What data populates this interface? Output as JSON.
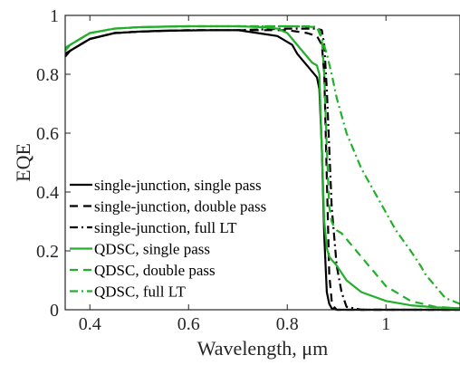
{
  "chart_data": {
    "type": "line",
    "xlabel": "Wavelength, μm",
    "ylabel": "EQE",
    "xlim": [
      0.35,
      1.15
    ],
    "ylim": [
      0,
      1
    ],
    "xticks": [
      0.4,
      0.6,
      0.8,
      1
    ],
    "xtick_labels": [
      "0.4",
      "0.6",
      "0.8",
      "1"
    ],
    "yticks": [
      0,
      0.2,
      0.4,
      0.6,
      0.8,
      1
    ],
    "ytick_labels": [
      "0",
      "0.2",
      "0.4",
      "0.6",
      "0.8",
      "1"
    ],
    "grid": false,
    "legend_position": "bottom-left",
    "series": [
      {
        "name": "single-junction, single pass",
        "color": "#000000",
        "dash": "solid",
        "x": [
          0.35,
          0.36,
          0.38,
          0.4,
          0.45,
          0.5,
          0.55,
          0.6,
          0.65,
          0.7,
          0.72,
          0.74,
          0.76,
          0.78,
          0.8,
          0.81,
          0.82,
          0.83,
          0.84,
          0.85,
          0.86,
          0.865,
          0.87,
          0.875,
          0.88,
          0.885,
          0.89,
          0.9,
          0.95,
          1.0,
          1.1,
          1.15
        ],
        "y": [
          0.86,
          0.88,
          0.9,
          0.92,
          0.94,
          0.945,
          0.948,
          0.949,
          0.95,
          0.95,
          0.945,
          0.94,
          0.935,
          0.93,
          0.91,
          0.9,
          0.87,
          0.85,
          0.83,
          0.81,
          0.79,
          0.75,
          0.55,
          0.25,
          0.06,
          0.02,
          0.005,
          0.0,
          0.0,
          0.0,
          0.0,
          0.0
        ]
      },
      {
        "name": "single-junction, double pass",
        "color": "#000000",
        "dash": "dashed",
        "x": [
          0.35,
          0.38,
          0.4,
          0.45,
          0.5,
          0.6,
          0.7,
          0.75,
          0.8,
          0.82,
          0.84,
          0.86,
          0.87,
          0.875,
          0.88,
          0.885,
          0.89,
          0.895,
          0.9,
          0.95,
          1.0,
          1.15
        ],
        "y": [
          0.87,
          0.9,
          0.92,
          0.94,
          0.945,
          0.95,
          0.95,
          0.95,
          0.95,
          0.945,
          0.94,
          0.93,
          0.9,
          0.8,
          0.45,
          0.12,
          0.03,
          0.01,
          0.0,
          0.0,
          0.0,
          0.0
        ]
      },
      {
        "name": "single-junction, full LT",
        "color": "#000000",
        "dash": "dashdot",
        "x": [
          0.35,
          0.38,
          0.4,
          0.45,
          0.5,
          0.6,
          0.7,
          0.8,
          0.84,
          0.86,
          0.87,
          0.875,
          0.88,
          0.885,
          0.89,
          0.9,
          0.91,
          0.92,
          0.95,
          1.0,
          1.15
        ],
        "y": [
          0.87,
          0.9,
          0.92,
          0.94,
          0.945,
          0.95,
          0.95,
          0.955,
          0.955,
          0.955,
          0.95,
          0.9,
          0.75,
          0.55,
          0.35,
          0.15,
          0.06,
          0.01,
          0.0,
          0.0,
          0.0
        ]
      },
      {
        "name": "QDSC, single pass",
        "color": "#22b02b",
        "dash": "solid",
        "x": [
          0.35,
          0.36,
          0.38,
          0.4,
          0.45,
          0.5,
          0.55,
          0.6,
          0.65,
          0.7,
          0.75,
          0.78,
          0.8,
          0.82,
          0.84,
          0.85,
          0.86,
          0.865,
          0.87,
          0.875,
          0.88,
          0.885,
          0.89,
          0.9,
          0.92,
          0.95,
          1.0,
          1.05,
          1.1,
          1.15
        ],
        "y": [
          0.88,
          0.9,
          0.92,
          0.94,
          0.955,
          0.96,
          0.962,
          0.963,
          0.963,
          0.963,
          0.96,
          0.955,
          0.94,
          0.9,
          0.86,
          0.84,
          0.83,
          0.8,
          0.55,
          0.3,
          0.21,
          0.18,
          0.17,
          0.15,
          0.1,
          0.06,
          0.03,
          0.015,
          0.008,
          0.005
        ]
      },
      {
        "name": "QDSC, double pass",
        "color": "#22b02b",
        "dash": "dashed",
        "x": [
          0.35,
          0.38,
          0.4,
          0.45,
          0.5,
          0.6,
          0.7,
          0.8,
          0.84,
          0.86,
          0.87,
          0.875,
          0.88,
          0.885,
          0.89,
          0.895,
          0.9,
          0.91,
          0.92,
          0.95,
          1.0,
          1.05,
          1.1,
          1.15
        ],
        "y": [
          0.89,
          0.92,
          0.94,
          0.955,
          0.96,
          0.963,
          0.963,
          0.963,
          0.962,
          0.96,
          0.92,
          0.8,
          0.55,
          0.35,
          0.3,
          0.28,
          0.27,
          0.26,
          0.24,
          0.18,
          0.08,
          0.03,
          0.01,
          0.005
        ]
      },
      {
        "name": "QDSC, full LT",
        "color": "#22b02b",
        "dash": "dashdot",
        "x": [
          0.35,
          0.38,
          0.4,
          0.45,
          0.5,
          0.6,
          0.7,
          0.8,
          0.85,
          0.86,
          0.865,
          0.87,
          0.88,
          0.89,
          0.9,
          0.92,
          0.95,
          0.97,
          1.0,
          1.02,
          1.05,
          1.07,
          1.08,
          1.09,
          1.1,
          1.12,
          1.15
        ],
        "y": [
          0.89,
          0.92,
          0.94,
          0.955,
          0.96,
          0.963,
          0.963,
          0.963,
          0.963,
          0.96,
          0.95,
          0.92,
          0.87,
          0.8,
          0.72,
          0.6,
          0.48,
          0.42,
          0.33,
          0.27,
          0.2,
          0.15,
          0.12,
          0.1,
          0.08,
          0.04,
          0.02
        ]
      }
    ]
  }
}
